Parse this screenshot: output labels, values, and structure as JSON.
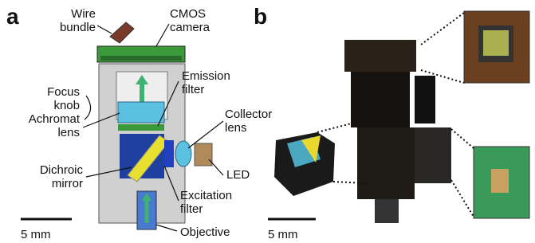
{
  "panels": [
    {
      "label": "a",
      "labels": [
        {
          "lines": [
            "Wire",
            "bundle"
          ]
        },
        {
          "lines": [
            "CMOS",
            "camera"
          ]
        },
        {
          "lines": [
            "Focus",
            "knob"
          ]
        },
        {
          "lines": [
            "Emission",
            "filter"
          ]
        },
        {
          "lines": [
            "Collector",
            "lens"
          ]
        },
        {
          "lines": [
            "Achromat",
            "lens"
          ]
        },
        {
          "lines": [
            "Dichroic",
            "mirror"
          ]
        },
        {
          "lines": [
            "LED"
          ]
        },
        {
          "lines": [
            "Excitation",
            "filter"
          ]
        },
        {
          "lines": [
            "Objective"
          ]
        }
      ],
      "scale_bar": "5 mm"
    },
    {
      "label": "b",
      "scale_bar": "5 mm"
    }
  ]
}
